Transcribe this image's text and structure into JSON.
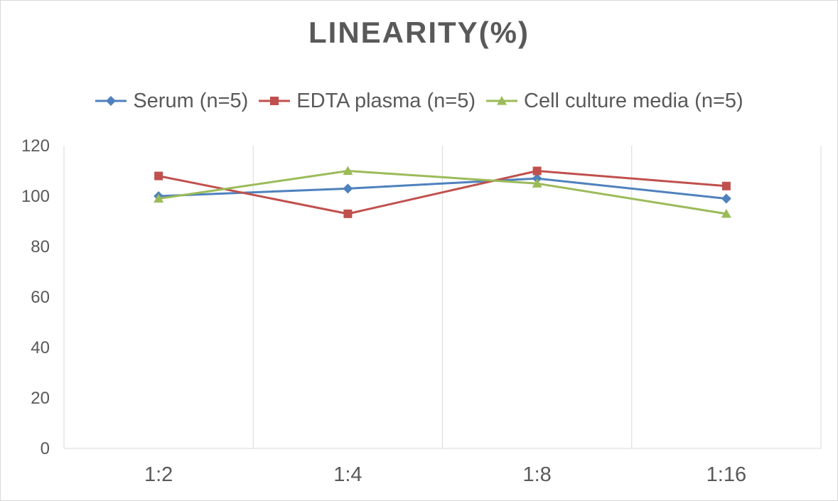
{
  "chart_data": {
    "type": "line",
    "title": "LINEARITY(%)",
    "categories": [
      "1:2",
      "1:4",
      "1:8",
      "1:16"
    ],
    "ylim": [
      0,
      120
    ],
    "yticks": [
      0,
      20,
      40,
      60,
      80,
      100,
      120
    ],
    "grid": "vertical",
    "legend_position": "top",
    "series": [
      {
        "name": "Serum (n=5)",
        "values": [
          100,
          103,
          107,
          99
        ],
        "color": "#4f81bd",
        "marker": "diamond"
      },
      {
        "name": "EDTA plasma (n=5)",
        "values": [
          108,
          93,
          110,
          104
        ],
        "color": "#c0504d",
        "marker": "square"
      },
      {
        "name": "Cell culture media (n=5)",
        "values": [
          99,
          110,
          105,
          93
        ],
        "color": "#9bbb59",
        "marker": "triangle"
      }
    ]
  }
}
